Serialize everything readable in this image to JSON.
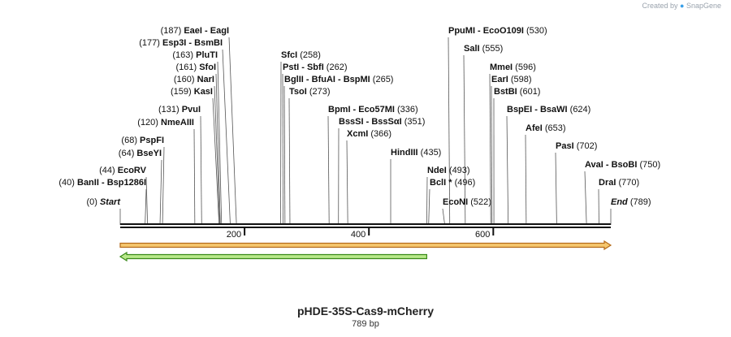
{
  "watermark": {
    "created_by": "Created by",
    "brand": "SnapGene"
  },
  "sequence": {
    "name": "pHDE-35S-Cas9-mCherry",
    "length_label": "789 bp",
    "length": 789
  },
  "ruler": {
    "ticks": [
      200,
      400,
      600
    ]
  },
  "features": [
    {
      "name": "orange-feature-arrow",
      "start": 1,
      "end": 789,
      "direction": "forward",
      "fill": "#f6c76e",
      "stroke": "#b46a1a"
    },
    {
      "name": "green-feature-arrow",
      "start": 1,
      "end": 493,
      "direction": "reverse",
      "fill": "#b9e98a",
      "stroke": "#3a8a1a"
    }
  ],
  "sites": [
    {
      "pos": 0,
      "labels": [
        "Start"
      ],
      "italic": true
    },
    {
      "pos": 40,
      "labels": [
        "BanII",
        "Bsp1286I"
      ]
    },
    {
      "pos": 44,
      "labels": [
        "EcoRV"
      ]
    },
    {
      "pos": 64,
      "labels": [
        "BseYI"
      ]
    },
    {
      "pos": 68,
      "labels": [
        "PspFI"
      ]
    },
    {
      "pos": 120,
      "labels": [
        "NmeAIII"
      ]
    },
    {
      "pos": 131,
      "labels": [
        "PvuI"
      ]
    },
    {
      "pos": 159,
      "labels": [
        "KasI"
      ]
    },
    {
      "pos": 160,
      "labels": [
        "NarI"
      ]
    },
    {
      "pos": 161,
      "labels": [
        "SfoI"
      ]
    },
    {
      "pos": 163,
      "labels": [
        "PluTI"
      ]
    },
    {
      "pos": 177,
      "labels": [
        "Esp3I",
        "BsmBI"
      ]
    },
    {
      "pos": 187,
      "labels": [
        "EaeI",
        "EagI"
      ]
    },
    {
      "pos": 258,
      "labels": [
        "SfcI"
      ]
    },
    {
      "pos": 262,
      "labels": [
        "PstI",
        "SbfI"
      ]
    },
    {
      "pos": 265,
      "labels": [
        "BglII",
        "BfuAI",
        "BspMI"
      ]
    },
    {
      "pos": 273,
      "labels": [
        "TsoI"
      ]
    },
    {
      "pos": 336,
      "labels": [
        "BpmI",
        "Eco57MI"
      ]
    },
    {
      "pos": 351,
      "labels": [
        "BssSI",
        "BssSαI"
      ]
    },
    {
      "pos": 366,
      "labels": [
        "XcmI"
      ]
    },
    {
      "pos": 435,
      "labels": [
        "HindIII"
      ]
    },
    {
      "pos": 493,
      "labels": [
        "NdeI"
      ]
    },
    {
      "pos": 496,
      "labels": [
        "BclI *"
      ]
    },
    {
      "pos": 522,
      "labels": [
        "EcoNI"
      ]
    },
    {
      "pos": 530,
      "labels": [
        "PpuMI",
        "EcoO109I"
      ]
    },
    {
      "pos": 555,
      "labels": [
        "SalI"
      ]
    },
    {
      "pos": 596,
      "labels": [
        "MmeI"
      ]
    },
    {
      "pos": 598,
      "labels": [
        "EarI"
      ]
    },
    {
      "pos": 601,
      "labels": [
        "BstBI"
      ]
    },
    {
      "pos": 624,
      "labels": [
        "BspEI",
        "BsaWI"
      ]
    },
    {
      "pos": 653,
      "labels": [
        "AfeI"
      ]
    },
    {
      "pos": 702,
      "labels": [
        "PasI"
      ]
    },
    {
      "pos": 750,
      "labels": [
        "AvaI",
        "BsoBI"
      ]
    },
    {
      "pos": 770,
      "labels": [
        "DraI"
      ]
    },
    {
      "pos": 789,
      "labels": [
        "End"
      ],
      "italic": true
    }
  ]
}
